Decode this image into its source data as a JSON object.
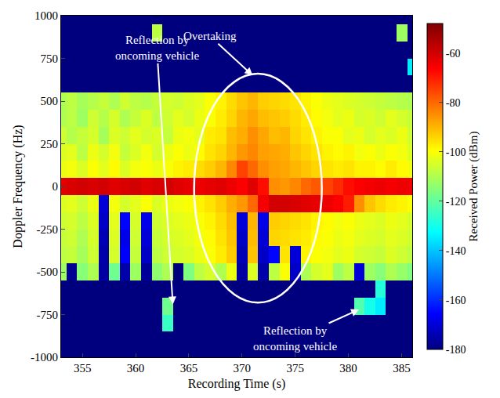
{
  "chart_data": {
    "type": "heatmap",
    "xlabel": "Recording Time (s)",
    "ylabel": "Doppler Frequency (Hz)",
    "colorbar_label": "Received Power (dBm)",
    "x": [
      353,
      354,
      355,
      356,
      357,
      358,
      359,
      360,
      361,
      362,
      363,
      364,
      365,
      366,
      367,
      368,
      369,
      370,
      371,
      372,
      373,
      374,
      375,
      376,
      377,
      378,
      379,
      380,
      381,
      382,
      383,
      384,
      385,
      386
    ],
    "y": [
      -1000,
      -900,
      -800,
      -700,
      -600,
      -500,
      -400,
      -300,
      -200,
      -100,
      0,
      100,
      200,
      300,
      400,
      500,
      600,
      700,
      800,
      900,
      1000
    ],
    "z": [
      [
        -180,
        -180,
        -180,
        -180,
        -180,
        -180,
        -180,
        -180,
        -180,
        -180,
        -180,
        -180,
        -180,
        -180,
        -180,
        -180,
        -180,
        -180,
        -180,
        -180,
        -180,
        -180,
        -180,
        -180,
        -180,
        -180,
        -180,
        -180,
        -180,
        -180,
        -180,
        -180,
        -180,
        -180
      ],
      [
        -180,
        -180,
        -180,
        -180,
        -180,
        -180,
        -180,
        -180,
        -180,
        -180,
        -180,
        -180,
        -180,
        -180,
        -180,
        -180,
        -180,
        -180,
        -180,
        -180,
        -180,
        -180,
        -180,
        -180,
        -180,
        -180,
        -180,
        -180,
        -180,
        -180,
        -180,
        -180,
        -180,
        -180
      ],
      [
        -180,
        -180,
        -180,
        -180,
        -180,
        -180,
        -180,
        -180,
        -180,
        -180,
        -125,
        -180,
        -180,
        -180,
        -180,
        -180,
        -180,
        -180,
        -180,
        -180,
        -180,
        -180,
        -180,
        -180,
        -180,
        -180,
        -180,
        -180,
        -180,
        -180,
        -180,
        -180,
        -180,
        -180
      ],
      [
        -180,
        -180,
        -180,
        -180,
        -180,
        -180,
        -180,
        -180,
        -180,
        -180,
        -118,
        -180,
        -180,
        -180,
        -180,
        -180,
        -180,
        -180,
        -180,
        -180,
        -180,
        -180,
        -180,
        -180,
        -180,
        -180,
        -180,
        -180,
        -122,
        -130,
        -135,
        -180,
        -180,
        -180
      ],
      [
        -180,
        -180,
        -180,
        -180,
        -180,
        -180,
        -180,
        -180,
        -180,
        -180,
        -180,
        -180,
        -180,
        -180,
        -180,
        -180,
        -180,
        -180,
        -180,
        -180,
        -180,
        -180,
        -180,
        -180,
        -180,
        -180,
        -180,
        -180,
        -180,
        -180,
        -128,
        -180,
        -180,
        -180
      ],
      [
        -112,
        -178,
        -115,
        -110,
        -176,
        -118,
        -175,
        -112,
        -177,
        -114,
        -110,
        -180,
        -116,
        -108,
        -105,
        -110,
        -102,
        -176,
        -104,
        -175,
        -108,
        -100,
        -172,
        -110,
        -105,
        -103,
        -112,
        -108,
        -170,
        -112,
        -115,
        -110,
        -113,
        -116
      ],
      [
        -108,
        -107,
        -111,
        -106,
        -175,
        -105,
        -166,
        -107,
        -172,
        -108,
        -106,
        -105,
        -104,
        -102,
        -100,
        -97,
        -93,
        -174,
        -92,
        -172,
        -165,
        -96,
        -170,
        -98,
        -100,
        -101,
        -103,
        -102,
        -105,
        -106,
        -107,
        -104,
        -106,
        -108
      ],
      [
        -107,
        -106,
        -110,
        -105,
        -174,
        -104,
        -168,
        -106,
        -170,
        -107,
        -105,
        -104,
        -103,
        -101,
        -99,
        -96,
        -92,
        -172,
        -91,
        -170,
        -94,
        -95,
        -96,
        -97,
        -99,
        -100,
        -102,
        -101,
        -103,
        -104,
        -105,
        -103,
        -104,
        -106
      ],
      [
        -106,
        -105,
        -108,
        -104,
        -172,
        -103,
        -165,
        -105,
        -168,
        -106,
        -104,
        -103,
        -102,
        -100,
        -98,
        -95,
        -91,
        -170,
        -90,
        -168,
        -93,
        -94,
        -95,
        -96,
        -98,
        -99,
        -101,
        -100,
        -102,
        -103,
        -104,
        -102,
        -103,
        -105
      ],
      [
        -104,
        -103,
        -106,
        -102,
        -170,
        -101,
        -105,
        -103,
        -100,
        -104,
        -102,
        -101,
        -100,
        -98,
        -96,
        -93,
        -89,
        -86,
        -80,
        -65,
        -60,
        -60,
        -61,
        -62,
        -63,
        -64,
        -66,
        -70,
        -85,
        -92,
        -95,
        -97,
        -98,
        -100
      ],
      [
        -62,
        -61,
        -60,
        -61,
        -60,
        -62,
        -61,
        -60,
        -62,
        -61,
        -60,
        -62,
        -63,
        -64,
        -63,
        -62,
        -64,
        -66,
        -62,
        -68,
        -85,
        -86,
        -84,
        -80,
        -78,
        -75,
        -72,
        -68,
        -66,
        -65,
        -64,
        -65,
        -64,
        -65
      ],
      [
        -102,
        -101,
        -104,
        -100,
        -103,
        -99,
        -104,
        -101,
        -100,
        -102,
        -100,
        -98,
        -97,
        -95,
        -93,
        -90,
        -84,
        -75,
        -80,
        -85,
        -87,
        -88,
        -90,
        -92,
        -94,
        -96,
        -97,
        -96,
        -98,
        -98,
        -99,
        -97,
        -99,
        -101
      ],
      [
        -104,
        -103,
        -108,
        -102,
        -105,
        -101,
        -107,
        -104,
        -101,
        -105,
        -102,
        -100,
        -102,
        -99,
        -96,
        -94,
        -90,
        -86,
        -84,
        -87,
        -88,
        -89,
        -92,
        -94,
        -96,
        -98,
        -99,
        -98,
        -101,
        -100,
        -102,
        -100,
        -101,
        -104
      ],
      [
        -106,
        -109,
        -107,
        -105,
        -111,
        -104,
        -106,
        -103,
        -105,
        -104,
        -107,
        -102,
        -101,
        -103,
        -97,
        -96,
        -91,
        -89,
        -85,
        -88,
        -91,
        -90,
        -94,
        -96,
        -98,
        -100,
        -100,
        -103,
        -102,
        -105,
        -103,
        -104,
        -102,
        -106
      ],
      [
        -110,
        -108,
        -112,
        -106,
        -109,
        -105,
        -110,
        -107,
        -104,
        -108,
        -106,
        -103,
        -105,
        -102,
        -100,
        -97,
        -94,
        -90,
        -88,
        -91,
        -92,
        -93,
        -95,
        -97,
        -99,
        -101,
        -103,
        -102,
        -105,
        -104,
        -106,
        -103,
        -105,
        -107
      ],
      [
        -110,
        -108,
        -111,
        -109,
        -107,
        -110,
        -106,
        -108,
        -109,
        -107,
        -105,
        -106,
        -104,
        -103,
        -100,
        -98,
        -95,
        -92,
        -90,
        -93,
        -94,
        -95,
        -96,
        -98,
        -100,
        -102,
        -103,
        -104,
        -105,
        -106,
        -107,
        -108,
        -109,
        -110
      ],
      [
        -180,
        -180,
        -180,
        -180,
        -180,
        -180,
        -180,
        -180,
        -180,
        -180,
        -180,
        -180,
        -180,
        -180,
        -180,
        -180,
        -180,
        -180,
        -180,
        -180,
        -180,
        -180,
        -180,
        -180,
        -180,
        -180,
        -180,
        -180,
        -180,
        -180,
        -180,
        -180,
        -180,
        -180
      ],
      [
        -180,
        -180,
        -180,
        -180,
        -180,
        -180,
        -180,
        -180,
        -180,
        -180,
        -180,
        -180,
        -180,
        -180,
        -180,
        -180,
        -180,
        -180,
        -180,
        -180,
        -180,
        -180,
        -180,
        -180,
        -180,
        -180,
        -180,
        -180,
        -180,
        -180,
        -180,
        -180,
        -180,
        -135
      ],
      [
        -180,
        -180,
        -180,
        -180,
        -180,
        -180,
        -180,
        -180,
        -180,
        -180,
        -180,
        -180,
        -180,
        -180,
        -180,
        -180,
        -180,
        -180,
        -180,
        -180,
        -180,
        -180,
        -180,
        -180,
        -180,
        -180,
        -180,
        -180,
        -180,
        -180,
        -180,
        -180,
        -180,
        -180
      ],
      [
        -180,
        -180,
        -180,
        -180,
        -180,
        -180,
        -180,
        -180,
        -180,
        -108,
        -180,
        -180,
        -180,
        -180,
        -180,
        -180,
        -180,
        -180,
        -180,
        -180,
        -180,
        -180,
        -180,
        -180,
        -180,
        -180,
        -180,
        -180,
        -180,
        -180,
        -180,
        -180,
        -112,
        -180
      ],
      [
        -180,
        -180,
        -180,
        -180,
        -180,
        -180,
        -180,
        -180,
        -180,
        -180,
        -180,
        -180,
        -180,
        -180,
        -180,
        -180,
        -180,
        -180,
        -180,
        -180,
        -180,
        -180,
        -180,
        -180,
        -180,
        -180,
        -180,
        -180,
        -180,
        -180,
        -180,
        -180,
        -180,
        -180
      ]
    ],
    "xlim": [
      353,
      386
    ],
    "ylim": [
      -1000,
      1000
    ],
    "xticks": [
      355,
      360,
      365,
      370,
      375,
      380,
      385
    ],
    "yticks": [
      -1000,
      -750,
      -500,
      -250,
      0,
      250,
      500,
      750,
      1000
    ],
    "clim": [
      -180,
      -48
    ],
    "cticks": [
      -180,
      -160,
      -140,
      -120,
      -100,
      -80,
      -60
    ],
    "annotations": [
      {
        "text": "Reflection by oncoming vehicle",
        "x": 363.5,
        "y": -690,
        "text_x": 362,
        "text_y": 810
      },
      {
        "text": "Overtaking",
        "x": 371,
        "y": 650,
        "text_x": 367,
        "text_y": 880
      },
      {
        "text": "Reflection by oncoming vehicle",
        "x": 381,
        "y": -720,
        "text_x": 375,
        "text_y": -890
      }
    ],
    "region": {
      "x": [
        365.5,
        377.5
      ],
      "y": [
        -680,
        660
      ]
    }
  }
}
